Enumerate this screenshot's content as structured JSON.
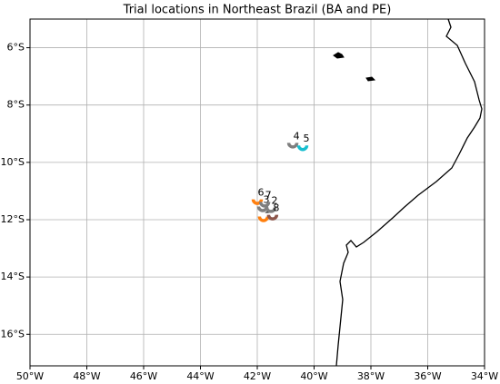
{
  "chart_data": {
    "type": "scatter",
    "title": "Trial locations in Northeast Brazil (BA and PE)",
    "xlim": [
      -50,
      -34
    ],
    "ylim": [
      -17.1,
      -5
    ],
    "xticks": [
      {
        "value": -50,
        "label": "50°W"
      },
      {
        "value": -48,
        "label": "48°W"
      },
      {
        "value": -46,
        "label": "46°W"
      },
      {
        "value": -44,
        "label": "44°W"
      },
      {
        "value": -42,
        "label": "42°W"
      },
      {
        "value": -40,
        "label": "40°W"
      },
      {
        "value": -38,
        "label": "38°W"
      },
      {
        "value": -36,
        "label": "36°W"
      },
      {
        "value": -34,
        "label": "34°W"
      }
    ],
    "yticks": [
      {
        "value": -6,
        "label": "6°S"
      },
      {
        "value": -8,
        "label": "8°S"
      },
      {
        "value": -10,
        "label": "10°S"
      },
      {
        "value": -12,
        "label": "12°S"
      },
      {
        "value": -14,
        "label": "14°S"
      },
      {
        "value": -16,
        "label": "16°S"
      }
    ],
    "grid": true,
    "point_labels": [
      "1",
      "2",
      "3",
      "4",
      "5",
      "6",
      "7",
      "8"
    ],
    "x": [
      -41.78,
      -41.52,
      -41.81,
      -40.75,
      -40.4,
      -42.0,
      -41.74,
      -41.46
    ],
    "values": [
      -11.89,
      -11.57,
      -11.54,
      -9.32,
      -9.41,
      -11.29,
      -11.38,
      -11.83
    ],
    "colors": [
      "#ff7f0e",
      "#7f7f7f",
      "#7f7f7f",
      "#7f7f7f",
      "#17becf",
      "#ff7f0e",
      "#7f7f7f",
      "#8c564b"
    ]
  }
}
